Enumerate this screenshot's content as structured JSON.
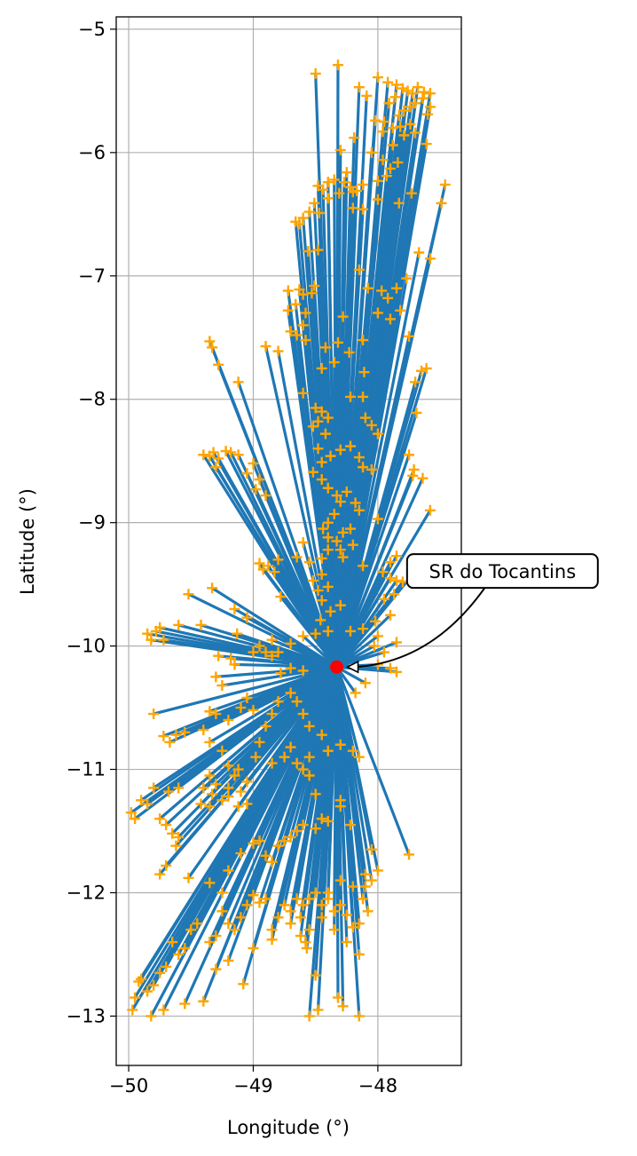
{
  "chart_data": {
    "type": "scatter",
    "title": "",
    "xlabel": "Longitude (°)",
    "ylabel": "Latitude (°)",
    "xlim": [
      -50.1,
      -47.33
    ],
    "ylim": [
      -13.4,
      -4.9
    ],
    "xticks": [
      -50,
      -49,
      -48
    ],
    "yticks": [
      -13,
      -12,
      -11,
      -10,
      -9,
      -8,
      -7,
      -6,
      -5
    ],
    "xtick_labels": [
      "−50",
      "−49",
      "−48"
    ],
    "ytick_labels": [
      "−13",
      "−12",
      "−11",
      "−10",
      "−9",
      "−8",
      "−7",
      "−6",
      "−5"
    ],
    "grid": true,
    "hub": {
      "lon": -48.33,
      "lat": -10.17,
      "color": "#ff0000"
    },
    "annotation": {
      "text": "SR do Tocantins",
      "text_lon": -47.0,
      "text_lat": -9.45
    },
    "line_color": "#1f77b4",
    "marker_color": "#ffa500",
    "points": [
      [
        -48.5,
        -5.36
      ],
      [
        -48.32,
        -5.29
      ],
      [
        -48.15,
        -5.47
      ],
      [
        -48.09,
        -5.54
      ],
      [
        -48.0,
        -5.39
      ],
      [
        -47.92,
        -5.43
      ],
      [
        -47.85,
        -5.45
      ],
      [
        -47.8,
        -5.48
      ],
      [
        -47.76,
        -5.5
      ],
      [
        -47.72,
        -5.52
      ],
      [
        -47.68,
        -5.47
      ],
      [
        -47.63,
        -5.51
      ],
      [
        -47.58,
        -5.52
      ],
      [
        -47.58,
        -5.63
      ],
      [
        -47.6,
        -5.69
      ],
      [
        -47.64,
        -5.56
      ],
      [
        -47.7,
        -5.6
      ],
      [
        -47.74,
        -5.63
      ],
      [
        -47.79,
        -5.66
      ],
      [
        -47.83,
        -5.7
      ],
      [
        -47.86,
        -5.55
      ],
      [
        -47.91,
        -5.6
      ],
      [
        -47.95,
        -5.75
      ],
      [
        -48.02,
        -5.74
      ],
      [
        -47.74,
        -5.77
      ],
      [
        -47.82,
        -5.79
      ],
      [
        -47.88,
        -5.8
      ],
      [
        -47.96,
        -5.83
      ],
      [
        -47.7,
        -5.84
      ],
      [
        -47.61,
        -5.93
      ],
      [
        -48.19,
        -5.88
      ],
      [
        -48.3,
        -5.98
      ],
      [
        -48.05,
        -6.0
      ],
      [
        -47.96,
        -6.06
      ],
      [
        -47.88,
        -5.94
      ],
      [
        -47.84,
        -6.08
      ],
      [
        -47.79,
        -5.86
      ],
      [
        -47.9,
        -6.13
      ],
      [
        -47.93,
        -6.19
      ],
      [
        -48.0,
        -6.23
      ],
      [
        -48.25,
        -6.16
      ],
      [
        -48.27,
        -6.24
      ],
      [
        -48.22,
        -6.28
      ],
      [
        -48.17,
        -6.31
      ],
      [
        -48.12,
        -6.26
      ],
      [
        -48.35,
        -6.22
      ],
      [
        -48.4,
        -6.24
      ],
      [
        -48.44,
        -6.3
      ],
      [
        -48.48,
        -6.27
      ],
      [
        -48.51,
        -6.41
      ],
      [
        -48.47,
        -6.49
      ],
      [
        -48.4,
        -6.37
      ],
      [
        -48.31,
        -6.33
      ],
      [
        -48.2,
        -6.32
      ],
      [
        -48.12,
        -6.46
      ],
      [
        -48.2,
        -6.45
      ],
      [
        -48.55,
        -6.48
      ],
      [
        -48.6,
        -6.53
      ],
      [
        -48.63,
        -6.58
      ],
      [
        -48.66,
        -6.56
      ],
      [
        -48.0,
        -6.38
      ],
      [
        -47.83,
        -6.41
      ],
      [
        -47.73,
        -6.33
      ],
      [
        -47.46,
        -6.26
      ],
      [
        -47.49,
        -6.41
      ],
      [
        -47.58,
        -6.86
      ],
      [
        -47.67,
        -6.81
      ],
      [
        -48.15,
        -6.95
      ],
      [
        -47.77,
        -7.02
      ],
      [
        -47.85,
        -7.1
      ],
      [
        -47.92,
        -7.18
      ],
      [
        -47.97,
        -7.12
      ],
      [
        -48.08,
        -7.1
      ],
      [
        -48.0,
        -7.3
      ],
      [
        -47.9,
        -7.35
      ],
      [
        -47.82,
        -7.28
      ],
      [
        -47.75,
        -7.49
      ],
      [
        -47.7,
        -7.86
      ],
      [
        -47.61,
        -7.75
      ],
      [
        -47.65,
        -7.77
      ],
      [
        -47.69,
        -8.11
      ],
      [
        -47.75,
        -8.45
      ],
      [
        -47.71,
        -8.57
      ],
      [
        -47.72,
        -8.62
      ],
      [
        -47.64,
        -8.64
      ],
      [
        -47.58,
        -8.9
      ],
      [
        -48.0,
        -8.28
      ],
      [
        -48.1,
        -8.15
      ],
      [
        -48.05,
        -8.21
      ],
      [
        -48.12,
        -7.98
      ],
      [
        -48.22,
        -7.98
      ],
      [
        -48.23,
        -7.62
      ],
      [
        -48.11,
        -7.78
      ],
      [
        -48.12,
        -7.52
      ],
      [
        -48.28,
        -7.33
      ],
      [
        -48.32,
        -7.54
      ],
      [
        -48.42,
        -7.58
      ],
      [
        -48.35,
        -7.7
      ],
      [
        -48.45,
        -7.75
      ],
      [
        -48.58,
        -7.3
      ],
      [
        -48.51,
        -7.08
      ],
      [
        -48.53,
        -7.14
      ],
      [
        -48.56,
        -6.8
      ],
      [
        -48.48,
        -6.79
      ],
      [
        -48.63,
        -7.11
      ],
      [
        -48.6,
        -7.15
      ],
      [
        -48.66,
        -7.23
      ],
      [
        -48.72,
        -7.28
      ],
      [
        -48.72,
        -7.12
      ],
      [
        -48.7,
        -7.45
      ],
      [
        -48.65,
        -7.48
      ],
      [
        -48.58,
        -7.52
      ],
      [
        -48.6,
        -7.4
      ],
      [
        -48.8,
        -7.61
      ],
      [
        -48.9,
        -7.57
      ],
      [
        -49.35,
        -7.53
      ],
      [
        -49.33,
        -7.58
      ],
      [
        -49.28,
        -7.72
      ],
      [
        -49.12,
        -7.86
      ],
      [
        -48.6,
        -7.95
      ],
      [
        -48.5,
        -8.07
      ],
      [
        -48.45,
        -8.1
      ],
      [
        -48.48,
        -8.18
      ],
      [
        -48.52,
        -8.22
      ],
      [
        -48.4,
        -8.15
      ],
      [
        -48.42,
        -8.28
      ],
      [
        -48.48,
        -8.4
      ],
      [
        -48.45,
        -8.51
      ],
      [
        -48.38,
        -8.46
      ],
      [
        -48.3,
        -8.41
      ],
      [
        -48.22,
        -8.38
      ],
      [
        -48.15,
        -8.47
      ],
      [
        -48.12,
        -8.55
      ],
      [
        -48.05,
        -8.57
      ],
      [
        -48.52,
        -8.59
      ],
      [
        -48.45,
        -8.65
      ],
      [
        -48.4,
        -8.72
      ],
      [
        -48.33,
        -8.78
      ],
      [
        -48.3,
        -8.83
      ],
      [
        -48.25,
        -8.75
      ],
      [
        -48.18,
        -8.84
      ],
      [
        -48.15,
        -8.9
      ],
      [
        -48.0,
        -8.97
      ],
      [
        -48.35,
        -8.93
      ],
      [
        -48.4,
        -9.0
      ],
      [
        -48.44,
        -9.05
      ],
      [
        -48.4,
        -9.12
      ],
      [
        -48.33,
        -9.15
      ],
      [
        -48.28,
        -9.08
      ],
      [
        -48.22,
        -9.05
      ],
      [
        -48.2,
        -9.18
      ],
      [
        -48.3,
        -9.22
      ],
      [
        -48.4,
        -9.22
      ],
      [
        -48.6,
        -9.16
      ],
      [
        -48.65,
        -9.28
      ],
      [
        -48.55,
        -9.32
      ],
      [
        -48.45,
        -9.29
      ],
      [
        -48.28,
        -9.28
      ],
      [
        -48.12,
        -9.35
      ],
      [
        -48.45,
        -9.42
      ],
      [
        -48.52,
        -9.47
      ],
      [
        -48.48,
        -9.55
      ],
      [
        -48.4,
        -9.52
      ],
      [
        -48.45,
        -9.63
      ],
      [
        -48.38,
        -9.72
      ],
      [
        -48.3,
        -9.67
      ],
      [
        -48.46,
        -9.79
      ],
      [
        -48.4,
        -9.88
      ],
      [
        -48.5,
        -9.9
      ],
      [
        -48.22,
        -9.88
      ],
      [
        -48.12,
        -9.86
      ],
      [
        -48.02,
        -9.8
      ],
      [
        -47.96,
        -9.4
      ],
      [
        -47.9,
        -9.45
      ],
      [
        -47.85,
        -9.47
      ],
      [
        -47.8,
        -9.48
      ],
      [
        -47.9,
        -9.32
      ],
      [
        -47.85,
        -9.27
      ],
      [
        -47.72,
        -9.42
      ],
      [
        -47.87,
        -9.58
      ],
      [
        -47.95,
        -9.62
      ],
      [
        -47.9,
        -9.75
      ],
      [
        -48.0,
        -9.92
      ],
      [
        -47.85,
        -9.97
      ],
      [
        -47.95,
        -10.05
      ],
      [
        -48.03,
        -10.0
      ],
      [
        -47.9,
        -10.18
      ],
      [
        -47.85,
        -10.21
      ],
      [
        -48.0,
        -10.15
      ],
      [
        -48.1,
        -10.3
      ],
      [
        -48.18,
        -10.38
      ],
      [
        -48.6,
        -10.2
      ],
      [
        -48.7,
        -10.18
      ],
      [
        -48.78,
        -10.22
      ],
      [
        -48.85,
        -10.08
      ],
      [
        -48.9,
        -10.05
      ],
      [
        -48.95,
        -10.0
      ],
      [
        -48.85,
        -9.95
      ],
      [
        -48.8,
        -10.05
      ],
      [
        -48.7,
        -9.98
      ],
      [
        -48.6,
        -9.92
      ],
      [
        -48.92,
        -9.38
      ],
      [
        -48.95,
        -9.33
      ],
      [
        -48.88,
        -9.35
      ],
      [
        -48.83,
        -9.4
      ],
      [
        -48.8,
        -9.3
      ],
      [
        -48.78,
        -9.6
      ],
      [
        -48.95,
        -8.65
      ],
      [
        -48.98,
        -8.73
      ],
      [
        -48.9,
        -8.78
      ],
      [
        -49.0,
        -8.52
      ],
      [
        -49.05,
        -8.6
      ],
      [
        -49.12,
        -8.45
      ],
      [
        -49.18,
        -8.43
      ],
      [
        -49.22,
        -8.42
      ],
      [
        -49.28,
        -8.48
      ],
      [
        -49.32,
        -8.43
      ],
      [
        -49.35,
        -8.46
      ],
      [
        -49.4,
        -8.45
      ],
      [
        -49.3,
        -8.55
      ],
      [
        -49.33,
        -9.53
      ],
      [
        -49.52,
        -9.58
      ],
      [
        -49.75,
        -9.85
      ],
      [
        -49.78,
        -9.88
      ],
      [
        -49.85,
        -9.9
      ],
      [
        -49.82,
        -9.95
      ],
      [
        -49.72,
        -9.95
      ],
      [
        -49.6,
        -9.83
      ],
      [
        -49.42,
        -9.83
      ],
      [
        -49.15,
        -9.7
      ],
      [
        -49.05,
        -9.77
      ],
      [
        -49.13,
        -9.9
      ],
      [
        -49.18,
        -10.1
      ],
      [
        -49.28,
        -10.08
      ],
      [
        -49.15,
        -10.15
      ],
      [
        -49.3,
        -10.25
      ],
      [
        -49.25,
        -10.32
      ],
      [
        -49.0,
        -10.05
      ],
      [
        -49.05,
        -10.42
      ],
      [
        -49.0,
        -10.52
      ],
      [
        -49.1,
        -10.5
      ],
      [
        -49.2,
        -10.6
      ],
      [
        -49.3,
        -10.55
      ],
      [
        -49.35,
        -10.53
      ],
      [
        -49.4,
        -10.68
      ],
      [
        -49.55,
        -10.7
      ],
      [
        -49.62,
        -10.72
      ],
      [
        -49.67,
        -10.78
      ],
      [
        -49.72,
        -10.73
      ],
      [
        -49.8,
        -10.55
      ],
      [
        -49.35,
        -10.78
      ],
      [
        -49.25,
        -10.85
      ],
      [
        -49.2,
        -10.97
      ],
      [
        -49.15,
        -11.05
      ],
      [
        -49.12,
        -11.0
      ],
      [
        -49.05,
        -11.1
      ],
      [
        -49.1,
        -11.18
      ],
      [
        -49.2,
        -11.15
      ],
      [
        -49.3,
        -11.12
      ],
      [
        -49.35,
        -11.05
      ],
      [
        -49.4,
        -11.15
      ],
      [
        -49.33,
        -11.2
      ],
      [
        -49.25,
        -11.25
      ],
      [
        -49.2,
        -11.22
      ],
      [
        -49.12,
        -11.3
      ],
      [
        -49.05,
        -11.28
      ],
      [
        -49.35,
        -11.3
      ],
      [
        -49.42,
        -11.28
      ],
      [
        -49.6,
        -11.15
      ],
      [
        -49.68,
        -11.18
      ],
      [
        -49.8,
        -11.15
      ],
      [
        -49.85,
        -11.28
      ],
      [
        -49.9,
        -11.25
      ],
      [
        -49.98,
        -11.35
      ],
      [
        -49.95,
        -11.4
      ],
      [
        -49.75,
        -11.4
      ],
      [
        -49.7,
        -11.45
      ],
      [
        -49.65,
        -11.52
      ],
      [
        -49.6,
        -11.55
      ],
      [
        -49.62,
        -11.62
      ],
      [
        -49.7,
        -11.78
      ],
      [
        -49.75,
        -11.85
      ],
      [
        -49.52,
        -11.88
      ],
      [
        -49.35,
        -11.92
      ],
      [
        -49.25,
        -12.0
      ],
      [
        -49.2,
        -11.82
      ],
      [
        -49.1,
        -11.68
      ],
      [
        -49.0,
        -11.6
      ],
      [
        -48.95,
        -11.58
      ],
      [
        -48.9,
        -11.7
      ],
      [
        -48.85,
        -11.75
      ],
      [
        -48.8,
        -11.62
      ],
      [
        -48.75,
        -11.58
      ],
      [
        -48.7,
        -11.55
      ],
      [
        -48.65,
        -11.5
      ],
      [
        -48.6,
        -11.45
      ],
      [
        -48.5,
        -11.48
      ],
      [
        -48.45,
        -11.4
      ],
      [
        -48.4,
        -11.42
      ],
      [
        -48.3,
        -11.3
      ],
      [
        -48.22,
        -11.45
      ],
      [
        -48.05,
        -11.65
      ],
      [
        -47.75,
        -11.69
      ],
      [
        -48.0,
        -11.82
      ],
      [
        -48.05,
        -11.9
      ],
      [
        -48.1,
        -11.95
      ],
      [
        -48.12,
        -12.05
      ],
      [
        -48.08,
        -12.15
      ],
      [
        -48.15,
        -12.25
      ],
      [
        -48.25,
        -12.18
      ],
      [
        -48.3,
        -12.1
      ],
      [
        -48.35,
        -12.15
      ],
      [
        -48.4,
        -12.05
      ],
      [
        -48.45,
        -12.1
      ],
      [
        -48.5,
        -12.0
      ],
      [
        -48.55,
        -12.05
      ],
      [
        -48.6,
        -12.1
      ],
      [
        -48.65,
        -12.05
      ],
      [
        -48.7,
        -12.15
      ],
      [
        -48.75,
        -12.1
      ],
      [
        -48.8,
        -12.2
      ],
      [
        -48.85,
        -12.3
      ],
      [
        -48.9,
        -12.05
      ],
      [
        -48.95,
        -12.08
      ],
      [
        -49.0,
        -12.02
      ],
      [
        -49.05,
        -12.1
      ],
      [
        -49.1,
        -12.2
      ],
      [
        -49.15,
        -12.3
      ],
      [
        -49.2,
        -12.25
      ],
      [
        -49.25,
        -12.15
      ],
      [
        -49.3,
        -12.35
      ],
      [
        -49.35,
        -12.4
      ],
      [
        -49.45,
        -12.25
      ],
      [
        -49.5,
        -12.3
      ],
      [
        -49.55,
        -12.45
      ],
      [
        -49.6,
        -12.5
      ],
      [
        -49.65,
        -12.4
      ],
      [
        -49.7,
        -12.6
      ],
      [
        -49.75,
        -12.65
      ],
      [
        -49.8,
        -12.75
      ],
      [
        -49.85,
        -12.8
      ],
      [
        -49.9,
        -12.7
      ],
      [
        -49.95,
        -12.85
      ],
      [
        -49.97,
        -12.95
      ],
      [
        -49.92,
        -12.72
      ],
      [
        -49.82,
        -13.0
      ],
      [
        -49.72,
        -12.95
      ],
      [
        -49.55,
        -12.9
      ],
      [
        -49.4,
        -12.88
      ],
      [
        -49.3,
        -12.62
      ],
      [
        -49.2,
        -12.55
      ],
      [
        -49.08,
        -12.74
      ],
      [
        -49.0,
        -12.45
      ],
      [
        -48.85,
        -12.38
      ],
      [
        -48.7,
        -12.25
      ],
      [
        -48.62,
        -12.35
      ],
      [
        -48.58,
        -12.4
      ],
      [
        -48.55,
        -12.3
      ],
      [
        -48.45,
        -12.2
      ],
      [
        -48.35,
        -12.3
      ],
      [
        -48.25,
        -12.4
      ],
      [
        -48.2,
        -12.28
      ],
      [
        -48.15,
        -12.5
      ],
      [
        -48.5,
        -12.67
      ],
      [
        -48.32,
        -12.85
      ],
      [
        -48.28,
        -12.92
      ],
      [
        -48.48,
        -12.95
      ],
      [
        -48.55,
        -13.0
      ],
      [
        -48.15,
        -13.0
      ],
      [
        -48.57,
        -12.45
      ],
      [
        -48.62,
        -12.2
      ],
      [
        -48.4,
        -12.0
      ],
      [
        -48.3,
        -11.9
      ],
      [
        -48.2,
        -11.95
      ],
      [
        -48.1,
        -11.85
      ],
      [
        -48.3,
        -11.25
      ],
      [
        -48.5,
        -11.2
      ],
      [
        -48.55,
        -11.05
      ],
      [
        -48.6,
        -11.0
      ],
      [
        -48.65,
        -10.95
      ],
      [
        -48.55,
        -10.9
      ],
      [
        -48.4,
        -10.85
      ],
      [
        -48.3,
        -10.8
      ],
      [
        -48.2,
        -10.85
      ],
      [
        -48.15,
        -10.9
      ],
      [
        -48.45,
        -10.72
      ],
      [
        -48.55,
        -10.65
      ],
      [
        -48.6,
        -10.55
      ],
      [
        -48.65,
        -10.45
      ],
      [
        -48.7,
        -10.38
      ],
      [
        -48.8,
        -10.45
      ],
      [
        -48.85,
        -10.55
      ],
      [
        -48.9,
        -10.65
      ],
      [
        -48.95,
        -10.78
      ],
      [
        -48.98,
        -10.9
      ],
      [
        -48.85,
        -10.95
      ],
      [
        -48.75,
        -10.9
      ],
      [
        -48.7,
        -10.82
      ]
    ]
  }
}
